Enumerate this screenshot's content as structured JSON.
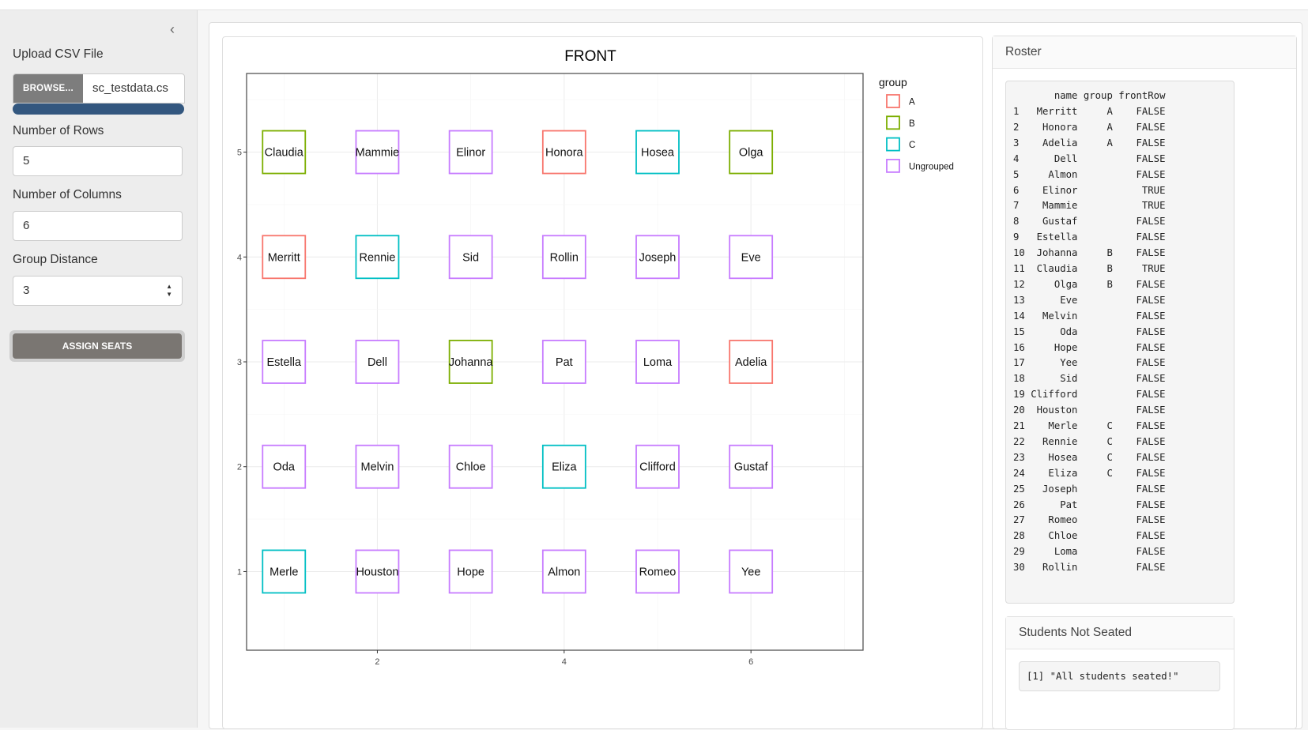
{
  "sidebar": {
    "collapse_glyph": "‹",
    "upload_label": "Upload CSV File",
    "browse_label": "BROWSE...",
    "filename": "sc_testdata.cs",
    "upload_progress": 1.0,
    "rows_label": "Number of Rows",
    "rows_value": "5",
    "cols_label": "Number of Columns",
    "cols_value": "6",
    "distance_label": "Group Distance",
    "distance_value": "3",
    "assign_label": "ASSIGN SEATS"
  },
  "chart_data": {
    "type": "scatter",
    "title": "FRONT",
    "xlim": [
      0.6,
      7.2
    ],
    "ylim": [
      0.25,
      5.75
    ],
    "x_ticks": [
      2,
      4,
      6
    ],
    "y_ticks": [
      1,
      2,
      3,
      4,
      5
    ],
    "grid": true,
    "legend": {
      "title": "group",
      "placement": "right",
      "entries": [
        {
          "label": "A",
          "color": "#F8766D"
        },
        {
          "label": "B",
          "color": "#7CAE00"
        },
        {
          "label": "C",
          "color": "#00BFC4"
        },
        {
          "label": "Ungrouped",
          "color": "#C77CFF"
        }
      ]
    },
    "points": [
      {
        "name": "Claudia",
        "x": 1,
        "y": 5,
        "group": "B"
      },
      {
        "name": "Mammie",
        "x": 2,
        "y": 5,
        "group": "Ungrouped"
      },
      {
        "name": "Elinor",
        "x": 3,
        "y": 5,
        "group": "Ungrouped"
      },
      {
        "name": "Honora",
        "x": 4,
        "y": 5,
        "group": "A"
      },
      {
        "name": "Hosea",
        "x": 5,
        "y": 5,
        "group": "C"
      },
      {
        "name": "Olga",
        "x": 6,
        "y": 5,
        "group": "B"
      },
      {
        "name": "Merritt",
        "x": 1,
        "y": 4,
        "group": "A"
      },
      {
        "name": "Rennie",
        "x": 2,
        "y": 4,
        "group": "C"
      },
      {
        "name": "Sid",
        "x": 3,
        "y": 4,
        "group": "Ungrouped"
      },
      {
        "name": "Rollin",
        "x": 4,
        "y": 4,
        "group": "Ungrouped"
      },
      {
        "name": "Joseph",
        "x": 5,
        "y": 4,
        "group": "Ungrouped"
      },
      {
        "name": "Eve",
        "x": 6,
        "y": 4,
        "group": "Ungrouped"
      },
      {
        "name": "Estella",
        "x": 1,
        "y": 3,
        "group": "Ungrouped"
      },
      {
        "name": "Dell",
        "x": 2,
        "y": 3,
        "group": "Ungrouped"
      },
      {
        "name": "Johanna",
        "x": 3,
        "y": 3,
        "group": "B"
      },
      {
        "name": "Pat",
        "x": 4,
        "y": 3,
        "group": "Ungrouped"
      },
      {
        "name": "Loma",
        "x": 5,
        "y": 3,
        "group": "Ungrouped"
      },
      {
        "name": "Adelia",
        "x": 6,
        "y": 3,
        "group": "A"
      },
      {
        "name": "Oda",
        "x": 1,
        "y": 2,
        "group": "Ungrouped"
      },
      {
        "name": "Melvin",
        "x": 2,
        "y": 2,
        "group": "Ungrouped"
      },
      {
        "name": "Chloe",
        "x": 3,
        "y": 2,
        "group": "Ungrouped"
      },
      {
        "name": "Eliza",
        "x": 4,
        "y": 2,
        "group": "C"
      },
      {
        "name": "Clifford",
        "x": 5,
        "y": 2,
        "group": "Ungrouped"
      },
      {
        "name": "Gustaf",
        "x": 6,
        "y": 2,
        "group": "Ungrouped"
      },
      {
        "name": "Merle",
        "x": 1,
        "y": 1,
        "group": "C"
      },
      {
        "name": "Houston",
        "x": 2,
        "y": 1,
        "group": "Ungrouped"
      },
      {
        "name": "Hope",
        "x": 3,
        "y": 1,
        "group": "Ungrouped"
      },
      {
        "name": "Almon",
        "x": 4,
        "y": 1,
        "group": "Ungrouped"
      },
      {
        "name": "Romeo",
        "x": 5,
        "y": 1,
        "group": "Ungrouped"
      },
      {
        "name": "Yee",
        "x": 6,
        "y": 1,
        "group": "Ungrouped"
      }
    ]
  },
  "roster": {
    "title": "Roster",
    "header": "       name group frontRow",
    "lines": [
      "1   Merritt     A    FALSE",
      "2    Honora     A    FALSE",
      "3    Adelia     A    FALSE",
      "4      Dell          FALSE",
      "5     Almon          FALSE",
      "6    Elinor           TRUE",
      "7    Mammie           TRUE",
      "8    Gustaf          FALSE",
      "9   Estella          FALSE",
      "10  Johanna     B    FALSE",
      "11  Claudia     B     TRUE",
      "12     Olga     B    FALSE",
      "13      Eve          FALSE",
      "14   Melvin          FALSE",
      "15      Oda          FALSE",
      "16     Hope          FALSE",
      "17      Yee          FALSE",
      "18      Sid          FALSE",
      "19 Clifford          FALSE",
      "20  Houston          FALSE",
      "21    Merle     C    FALSE",
      "22   Rennie     C    FALSE",
      "23    Hosea     C    FALSE",
      "24    Eliza     C    FALSE",
      "25   Joseph          FALSE",
      "26      Pat          FALSE",
      "27    Romeo          FALSE",
      "28    Chloe          FALSE",
      "29     Loma          FALSE",
      "30   Rollin          FALSE"
    ]
  },
  "not_seated": {
    "title": "Students Not Seated",
    "output": "[1] \"All students seated!\""
  }
}
